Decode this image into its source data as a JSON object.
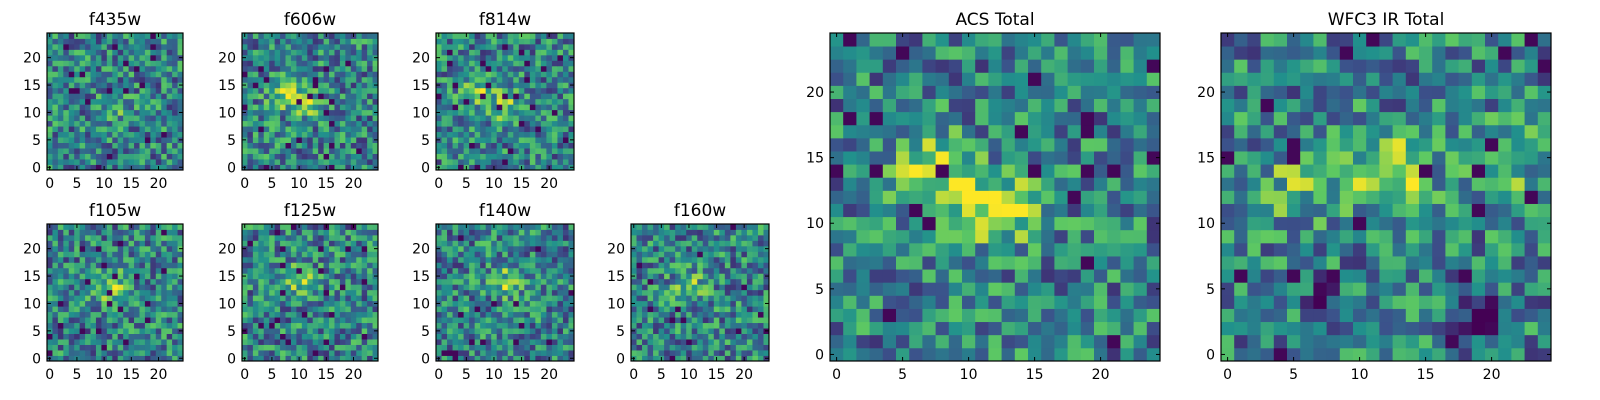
{
  "colormap": [
    "#440154",
    "#3b528b",
    "#21918c",
    "#5ec962",
    "#fde725"
  ],
  "chart_data": [
    {
      "type": "heatmap",
      "title": "f435w",
      "xticks": [
        0,
        5,
        10,
        15,
        20
      ],
      "yticks": [
        0,
        5,
        10,
        15,
        20
      ],
      "xlim": [
        -0.5,
        24.5
      ],
      "ylim": [
        -0.5,
        24.5
      ],
      "grid": false,
      "hotspots": [
        [
          12,
          11,
          0.2
        ]
      ],
      "seed": 11
    },
    {
      "type": "heatmap",
      "title": "f606w",
      "xticks": [
        0,
        5,
        10,
        15,
        20
      ],
      "yticks": [
        0,
        5,
        10,
        15,
        20
      ],
      "xlim": [
        -0.5,
        24.5
      ],
      "ylim": [
        -0.5,
        24.5
      ],
      "grid": false,
      "hotspots": [
        [
          7,
          14,
          0.35
        ],
        [
          11,
          12,
          0.35
        ]
      ],
      "seed": 12
    },
    {
      "type": "heatmap",
      "title": "f814w",
      "xticks": [
        0,
        5,
        10,
        15,
        20
      ],
      "yticks": [
        0,
        5,
        10,
        15,
        20
      ],
      "xlim": [
        -0.5,
        24.5
      ],
      "ylim": [
        -0.5,
        24.5
      ],
      "grid": false,
      "hotspots": [
        [
          7,
          14,
          0.3
        ],
        [
          12,
          11,
          0.3
        ]
      ],
      "seed": 13
    },
    {
      "type": "heatmap",
      "title": "f105w",
      "xticks": [
        0,
        5,
        10,
        15,
        20
      ],
      "yticks": [
        0,
        5,
        10,
        15,
        20
      ],
      "xlim": [
        -0.5,
        24.5
      ],
      "ylim": [
        -0.5,
        24.5
      ],
      "grid": false,
      "hotspots": [
        [
          11,
          13,
          0.35
        ]
      ],
      "seed": 14
    },
    {
      "type": "heatmap",
      "title": "f125w",
      "xticks": [
        0,
        5,
        10,
        15,
        20
      ],
      "yticks": [
        0,
        5,
        10,
        15,
        20
      ],
      "xlim": [
        -0.5,
        24.5
      ],
      "ylim": [
        -0.5,
        24.5
      ],
      "grid": false,
      "hotspots": [
        [
          10,
          14,
          0.3
        ]
      ],
      "seed": 15
    },
    {
      "type": "heatmap",
      "title": "f140w",
      "xticks": [
        0,
        5,
        10,
        15,
        20
      ],
      "yticks": [
        0,
        5,
        10,
        15,
        20
      ],
      "xlim": [
        -0.5,
        24.5
      ],
      "ylim": [
        -0.5,
        24.5
      ],
      "grid": false,
      "hotspots": [
        [
          12,
          14,
          0.3
        ]
      ],
      "seed": 16
    },
    {
      "type": "heatmap",
      "title": "f160w",
      "xticks": [
        0,
        5,
        10,
        15,
        20
      ],
      "yticks": [
        0,
        5,
        10,
        15,
        20
      ],
      "xlim": [
        -0.5,
        24.5
      ],
      "ylim": [
        -0.5,
        24.5
      ],
      "grid": false,
      "hotspots": [
        [
          10,
          13,
          0.3
        ]
      ],
      "seed": 17
    },
    {
      "type": "heatmap",
      "title": "ACS Total",
      "xticks": [
        0,
        5,
        10,
        15,
        20
      ],
      "yticks": [
        0,
        5,
        10,
        15,
        20
      ],
      "xlim": [
        -0.5,
        24.5
      ],
      "ylim": [
        -0.5,
        24.5
      ],
      "grid": false,
      "hotspots": [
        [
          7,
          14,
          0.45
        ],
        [
          12,
          11,
          0.5
        ]
      ],
      "seed": 21
    },
    {
      "type": "heatmap",
      "title": "WFC3 IR Total",
      "xticks": [
        0,
        5,
        10,
        15,
        20
      ],
      "yticks": [
        0,
        5,
        10,
        15,
        20
      ],
      "xlim": [
        -0.5,
        24.5
      ],
      "ylim": [
        -0.5,
        24.5
      ],
      "grid": false,
      "hotspots": [
        [
          12,
          14,
          0.5
        ],
        [
          5,
          13,
          0.25
        ],
        [
          21,
          14,
          0.25
        ]
      ],
      "darkspots": [
        [
          19,
          3,
          0.6
        ],
        [
          7,
          4,
          0.3
        ]
      ],
      "seed": 22
    }
  ]
}
